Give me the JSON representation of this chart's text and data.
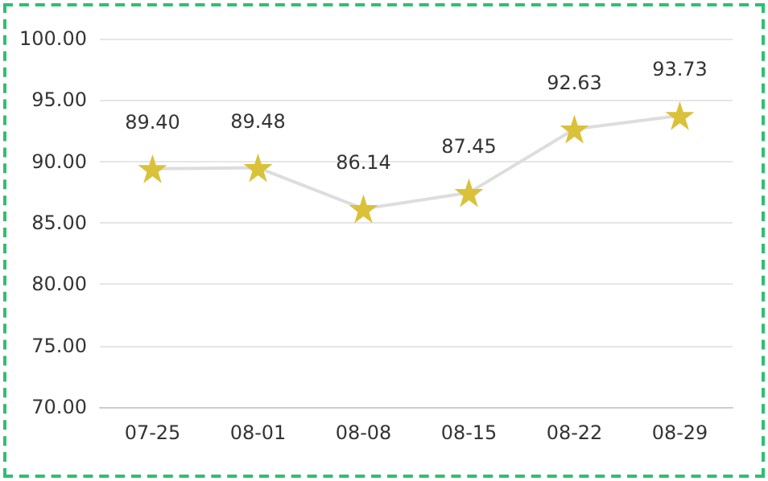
{
  "chart_data": {
    "type": "line",
    "categories": [
      "07-25",
      "08-01",
      "08-08",
      "08-15",
      "08-22",
      "08-29"
    ],
    "series": [
      {
        "color": "#dddddd",
        "colors": [
          "#d9c23a",
          "#d9c23a",
          "#d9c23a",
          "#d9c23a",
          "#d9c23a",
          "#d9c23a"
        ],
        "values": [
          89.4,
          89.48,
          86.14,
          87.45,
          92.63,
          93.73
        ],
        "value_labels": [
          "89.40",
          "89.48",
          "86.14",
          "87.45",
          "92.63",
          "93.73"
        ]
      }
    ],
    "ylim": [
      70,
      100
    ],
    "yticks": [
      {
        "value": 70,
        "label": "70.00"
      },
      {
        "value": 75,
        "label": "75.00"
      },
      {
        "value": 80,
        "label": "80.00"
      },
      {
        "value": 85,
        "label": "85.00"
      },
      {
        "value": 90,
        "label": "90.00"
      },
      {
        "value": 95,
        "label": "95.00"
      },
      {
        "value": 100,
        "label": "100.00"
      }
    ],
    "grid": "y",
    "marker": "star",
    "line_style": "solid"
  }
}
